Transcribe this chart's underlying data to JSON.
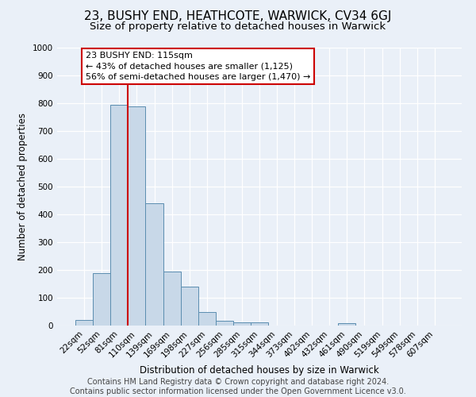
{
  "title": "23, BUSHY END, HEATHCOTE, WARWICK, CV34 6GJ",
  "subtitle": "Size of property relative to detached houses in Warwick",
  "xlabel": "Distribution of detached houses by size in Warwick",
  "ylabel": "Number of detached properties",
  "bar_labels": [
    "22sqm",
    "52sqm",
    "81sqm",
    "110sqm",
    "139sqm",
    "169sqm",
    "198sqm",
    "227sqm",
    "256sqm",
    "285sqm",
    "315sqm",
    "344sqm",
    "373sqm",
    "402sqm",
    "432sqm",
    "461sqm",
    "490sqm",
    "519sqm",
    "549sqm",
    "578sqm",
    "607sqm"
  ],
  "bar_heights": [
    20,
    190,
    795,
    790,
    440,
    195,
    140,
    50,
    17,
    12,
    11,
    0,
    0,
    0,
    0,
    10,
    0,
    0,
    0,
    0,
    0
  ],
  "bar_color": "#c8d8e8",
  "bar_edge_color": "#5b8db0",
  "vline_x": 3.0,
  "vline_color": "#cc0000",
  "ylim": [
    0,
    1000
  ],
  "yticks": [
    0,
    100,
    200,
    300,
    400,
    500,
    600,
    700,
    800,
    900,
    1000
  ],
  "annotation_title": "23 BUSHY END: 115sqm",
  "annotation_line1": "← 43% of detached houses are smaller (1,125)",
  "annotation_line2": "56% of semi-detached houses are larger (1,470) →",
  "annotation_box_color": "#ffffff",
  "annotation_box_edge": "#cc0000",
  "footer_line1": "Contains HM Land Registry data © Crown copyright and database right 2024.",
  "footer_line2": "Contains public sector information licensed under the Open Government Licence v3.0.",
  "background_color": "#eaf0f8",
  "plot_bg_color": "#eaf0f8",
  "title_fontsize": 11,
  "subtitle_fontsize": 9.5,
  "footer_fontsize": 7
}
